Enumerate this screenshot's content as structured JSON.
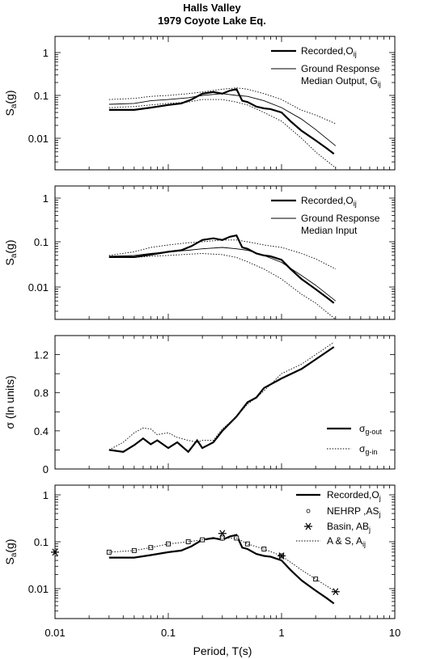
{
  "chart_data": {
    "title_line1": "Halls Valley",
    "title_line2": "1979 Coyote Lake Eq.",
    "xlabel": "Period, T(s)",
    "xscale": "log",
    "xlim": [
      0.01,
      10
    ],
    "x_tick_labels": [
      "0.01",
      "0.1",
      "1",
      "10"
    ],
    "panels": [
      {
        "type": "line",
        "ylabel": "S_a(g)",
        "yscale": "log",
        "ylim": [
          0.002,
          2
        ],
        "y_tick_labels": [
          "1",
          "0.1",
          "0.01"
        ],
        "legend_position": "top-right",
        "legend": [
          {
            "label": "Recorded,O",
            "sub": "ij",
            "style": "thick"
          },
          {
            "label": "Ground Response",
            "style": "thin"
          },
          {
            "label": "Median Output, G",
            "sub": "ij",
            "style": "none"
          }
        ],
        "series": [
          {
            "name": "Recorded,Oij",
            "style": "thick",
            "x": [
              0.03,
              0.05,
              0.07,
              0.1,
              0.13,
              0.16,
              0.2,
              0.25,
              0.3,
              0.35,
              0.4,
              0.45,
              0.5,
              0.6,
              0.7,
              0.8,
              1.0,
              1.2,
              1.5,
              2.0,
              2.5,
              2.9
            ],
            "y": [
              0.046,
              0.046,
              0.052,
              0.06,
              0.065,
              0.08,
              0.11,
              0.12,
              0.11,
              0.13,
              0.14,
              0.075,
              0.07,
              0.055,
              0.05,
              0.048,
              0.04,
              0.025,
              0.015,
              0.009,
              0.006,
              0.0045
            ]
          },
          {
            "name": "Median Output",
            "style": "thin",
            "x": [
              0.03,
              0.05,
              0.07,
              0.1,
              0.15,
              0.2,
              0.3,
              0.4,
              0.5,
              0.7,
              1.0,
              1.5,
              2.0,
              3.0
            ],
            "y": [
              0.062,
              0.065,
              0.075,
              0.08,
              0.088,
              0.1,
              0.11,
              0.1,
              0.095,
              0.075,
              0.052,
              0.028,
              0.016,
              0.0068
            ]
          },
          {
            "name": "Median Output upper",
            "style": "dotted",
            "x": [
              0.03,
              0.05,
              0.07,
              0.1,
              0.15,
              0.2,
              0.3,
              0.4,
              0.5,
              0.7,
              1.0,
              1.5,
              2.0,
              3.0
            ],
            "y": [
              0.08,
              0.085,
              0.095,
              0.1,
              0.11,
              0.12,
              0.14,
              0.15,
              0.14,
              0.11,
              0.08,
              0.045,
              0.035,
              0.022
            ]
          },
          {
            "name": "Median Output lower",
            "style": "dotted",
            "x": [
              0.03,
              0.05,
              0.07,
              0.1,
              0.15,
              0.2,
              0.3,
              0.4,
              0.5,
              0.7,
              1.0,
              1.5,
              2.0,
              3.0
            ],
            "y": [
              0.052,
              0.055,
              0.06,
              0.065,
              0.07,
              0.08,
              0.08,
              0.07,
              0.06,
              0.04,
              0.025,
              0.01,
              0.005,
              0.0022
            ]
          }
        ]
      },
      {
        "type": "line",
        "ylabel": "S_a(g)",
        "yscale": "log",
        "ylim": [
          0.002,
          2
        ],
        "y_tick_labels": [
          "1",
          "0.1",
          "0.01"
        ],
        "legend_position": "top-right",
        "legend": [
          {
            "label": "Recorded,O",
            "sub": "ij",
            "style": "thick"
          },
          {
            "label": "Ground Response",
            "style": "thin"
          },
          {
            "label": "Median Input",
            "style": "none"
          }
        ],
        "series": [
          {
            "name": "Recorded,Oij",
            "style": "thick",
            "x": [
              0.03,
              0.05,
              0.07,
              0.1,
              0.13,
              0.16,
              0.2,
              0.25,
              0.3,
              0.35,
              0.4,
              0.45,
              0.5,
              0.6,
              0.7,
              0.8,
              1.0,
              1.2,
              1.5,
              2.0,
              2.5,
              2.9
            ],
            "y": [
              0.046,
              0.046,
              0.052,
              0.06,
              0.065,
              0.08,
              0.11,
              0.12,
              0.11,
              0.13,
              0.14,
              0.075,
              0.07,
              0.055,
              0.05,
              0.048,
              0.04,
              0.025,
              0.015,
              0.009,
              0.006,
              0.0045
            ]
          },
          {
            "name": "Median Input",
            "style": "thin",
            "x": [
              0.03,
              0.05,
              0.07,
              0.1,
              0.15,
              0.2,
              0.3,
              0.4,
              0.5,
              0.7,
              1.0,
              1.5,
              2.0,
              3.0
            ],
            "y": [
              0.048,
              0.05,
              0.055,
              0.06,
              0.065,
              0.07,
              0.075,
              0.07,
              0.065,
              0.05,
              0.035,
              0.018,
              0.011,
              0.005
            ]
          },
          {
            "name": "Median Input upper",
            "style": "dotted",
            "x": [
              0.03,
              0.05,
              0.07,
              0.1,
              0.15,
              0.2,
              0.3,
              0.4,
              0.5,
              0.7,
              1.0,
              1.5,
              2.0,
              3.0
            ],
            "y": [
              0.05,
              0.06,
              0.075,
              0.085,
              0.095,
              0.1,
              0.11,
              0.11,
              0.1,
              0.085,
              0.075,
              0.055,
              0.042,
              0.025
            ]
          },
          {
            "name": "Median Input lower",
            "style": "dotted",
            "x": [
              0.03,
              0.05,
              0.07,
              0.1,
              0.15,
              0.2,
              0.3,
              0.4,
              0.5,
              0.7,
              1.0,
              1.5,
              2.0,
              3.0
            ],
            "y": [
              0.045,
              0.045,
              0.048,
              0.05,
              0.053,
              0.055,
              0.052,
              0.045,
              0.036,
              0.025,
              0.015,
              0.007,
              0.0045,
              0.002
            ]
          }
        ]
      },
      {
        "type": "line",
        "ylabel": "σ (ln units)",
        "yscale": "linear",
        "ylim": [
          0,
          1.4
        ],
        "y_tick_labels": [
          "1.2",
          "0.8",
          "0.4",
          "0"
        ],
        "legend_position": "bottom-right",
        "legend": [
          {
            "label": "σ",
            "sub": "g-out",
            "style": "thick"
          },
          {
            "label": "σ",
            "sub": "g-in",
            "style": "dotted"
          }
        ],
        "series": [
          {
            "name": "σg-out",
            "style": "thick",
            "x": [
              0.03,
              0.04,
              0.05,
              0.06,
              0.07,
              0.08,
              0.1,
              0.12,
              0.15,
              0.18,
              0.2,
              0.25,
              0.3,
              0.4,
              0.5,
              0.6,
              0.7,
              1.0,
              1.5,
              2.0,
              2.9
            ],
            "y": [
              0.2,
              0.18,
              0.25,
              0.32,
              0.26,
              0.3,
              0.22,
              0.28,
              0.18,
              0.3,
              0.22,
              0.28,
              0.4,
              0.55,
              0.7,
              0.75,
              0.85,
              0.95,
              1.05,
              1.15,
              1.28
            ]
          },
          {
            "name": "σg-in",
            "style": "dotted",
            "x": [
              0.03,
              0.04,
              0.05,
              0.06,
              0.07,
              0.08,
              0.1,
              0.12,
              0.15,
              0.18,
              0.2,
              0.25,
              0.3,
              0.4,
              0.5,
              0.6,
              0.7,
              1.0,
              1.5,
              2.0,
              2.9
            ],
            "y": [
              0.2,
              0.28,
              0.38,
              0.43,
              0.42,
              0.36,
              0.38,
              0.33,
              0.3,
              0.28,
              0.3,
              0.3,
              0.42,
              0.55,
              0.68,
              0.75,
              0.82,
              1.0,
              1.1,
              1.2,
              1.33
            ]
          }
        ]
      },
      {
        "type": "line",
        "ylabel": "S_a(g)",
        "yscale": "log",
        "ylim": [
          0.002,
          2
        ],
        "y_tick_labels": [
          "1",
          "0.1",
          "0.01"
        ],
        "legend_position": "top-right",
        "legend": [
          {
            "label": "Recorded,O",
            "sub": "j",
            "style": "thick"
          },
          {
            "label": "NEHRP ,AS",
            "sub": "j",
            "style": "square"
          },
          {
            "label": "Basin, AB",
            "sub": "j",
            "style": "star"
          },
          {
            "label": "A & S, A",
            "sub": "ij",
            "style": "dotted"
          }
        ],
        "series": [
          {
            "name": "Recorded,Oj",
            "style": "thick",
            "x": [
              0.03,
              0.05,
              0.07,
              0.1,
              0.13,
              0.16,
              0.2,
              0.25,
              0.3,
              0.35,
              0.4,
              0.45,
              0.5,
              0.6,
              0.7,
              0.8,
              1.0,
              1.2,
              1.5,
              2.0,
              2.5,
              2.9
            ],
            "y": [
              0.046,
              0.046,
              0.052,
              0.06,
              0.065,
              0.08,
              0.11,
              0.12,
              0.11,
              0.13,
              0.14,
              0.075,
              0.07,
              0.055,
              0.05,
              0.048,
              0.04,
              0.025,
              0.015,
              0.009,
              0.006,
              0.0045
            ]
          },
          {
            "name": "NEHRP ,ASj",
            "style": "square",
            "x": [
              0.03,
              0.05,
              0.07,
              0.1,
              0.15,
              0.2,
              0.3,
              0.4,
              0.5,
              0.7,
              1.0,
              2.0
            ],
            "y": [
              0.06,
              0.065,
              0.075,
              0.09,
              0.1,
              0.11,
              0.12,
              0.12,
              0.09,
              0.07,
              0.05,
              0.016
            ]
          },
          {
            "name": "Basin, ABj",
            "style": "star",
            "x": [
              0.01,
              0.3,
              1.0,
              3.0
            ],
            "y": [
              0.06,
              0.15,
              0.05,
              0.0085
            ]
          },
          {
            "name": "A & S, Aij",
            "style": "dotted",
            "x": [
              0.03,
              0.05,
              0.07,
              0.1,
              0.15,
              0.2,
              0.3,
              0.4,
              0.5,
              0.7,
              1.0,
              1.5,
              2.0,
              3.0
            ],
            "y": [
              0.06,
              0.065,
              0.075,
              0.09,
              0.1,
              0.11,
              0.12,
              0.12,
              0.09,
              0.07,
              0.05,
              0.025,
              0.016,
              0.0085
            ]
          }
        ]
      }
    ]
  }
}
